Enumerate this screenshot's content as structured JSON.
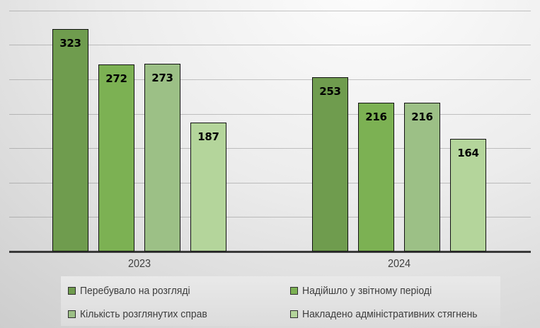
{
  "chart_data": {
    "type": "bar",
    "title": "",
    "categories": [
      "2023",
      "2024"
    ],
    "series": [
      {
        "name": "Перебувало на розгляді",
        "color": "#6f9c4e",
        "values": [
          323,
          253
        ]
      },
      {
        "name": "Надійшло у звітному періоді",
        "color": "#7cb153",
        "values": [
          272,
          216
        ]
      },
      {
        "name": "Кількість розглянутих справ",
        "color": "#9cc086",
        "values": [
          273,
          216
        ]
      },
      {
        "name": "Накладено адміністративних стягнень",
        "color": "#b4d59b",
        "values": [
          187,
          164
        ]
      }
    ],
    "value_labels_shown": true,
    "xlabel": "",
    "ylabel": "",
    "ylim": [
      0,
      365
    ],
    "gridlines_y": [
      50,
      100,
      150,
      200,
      250,
      300,
      350
    ],
    "grid": true,
    "legend_position": "bottom",
    "colors": {
      "axis_line": "#3a3a3a",
      "gridline": "#6e6e6e",
      "category_text": "#404040",
      "value_text": "#000000",
      "bar_border": "#111111",
      "legend_background": "#e4e4e4"
    }
  }
}
